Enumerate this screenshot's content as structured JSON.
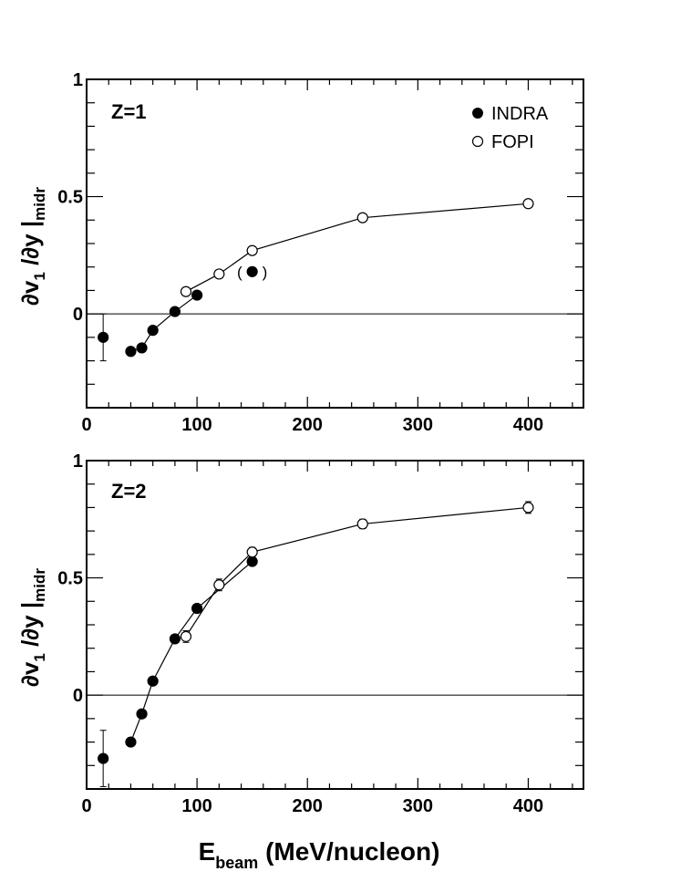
{
  "chart_data": [
    {
      "type": "line",
      "panel_label": "Z=1",
      "ylabel": {
        "main": "∂v",
        "sub1": "1",
        "mid": " /∂y  |",
        "sub2": "midr"
      },
      "xlim": [
        0,
        450
      ],
      "ylim": [
        -0.4,
        1.0
      ],
      "xticks": [
        0,
        100,
        200,
        300,
        400
      ],
      "yticks": [
        0,
        0.5,
        1
      ],
      "ytick_labels": [
        "0",
        "0.5",
        "1"
      ],
      "zero_line": true,
      "legend": {
        "placement": "top-right",
        "entries": [
          {
            "marker": "filled-circle",
            "label": "INDRA"
          },
          {
            "marker": "open-circle",
            "label": "FOPI"
          }
        ]
      },
      "series": [
        {
          "name": "INDRA",
          "marker": "filled",
          "connected": true,
          "x": [
            40,
            50,
            60,
            80,
            100
          ],
          "y": [
            -0.16,
            -0.145,
            -0.07,
            0.01,
            0.08
          ]
        },
        {
          "name": "FOPI",
          "marker": "open",
          "connected": true,
          "x": [
            90,
            120,
            150,
            250,
            400
          ],
          "y": [
            0.095,
            0.17,
            0.27,
            0.41,
            0.47
          ]
        },
        {
          "marker": "filled",
          "connected": false,
          "x": [
            15
          ],
          "y": [
            -0.1
          ],
          "yerr": [
            0.1
          ]
        },
        {
          "marker": "filled",
          "connected": false,
          "parenthesized": true,
          "x": [
            150
          ],
          "y": [
            0.18
          ]
        }
      ]
    },
    {
      "type": "line",
      "panel_label": "Z=2",
      "ylabel": {
        "main": "∂v",
        "sub1": "1",
        "mid": " /∂y  |",
        "sub2": "midr"
      },
      "xlim": [
        0,
        450
      ],
      "ylim": [
        -0.4,
        1.0
      ],
      "xticks": [
        0,
        100,
        200,
        300,
        400
      ],
      "yticks": [
        0,
        0.5,
        1
      ],
      "ytick_labels": [
        "0",
        "0.5",
        "1"
      ],
      "zero_line": true,
      "series": [
        {
          "name": "INDRA",
          "marker": "filled",
          "connected": true,
          "x": [
            40,
            50,
            60,
            80,
            100,
            150
          ],
          "y": [
            -0.2,
            -0.08,
            0.06,
            0.24,
            0.37,
            0.57
          ]
        },
        {
          "name": "FOPI",
          "marker": "open",
          "connected": true,
          "x": [
            90,
            120,
            150,
            250,
            400
          ],
          "y": [
            0.25,
            0.47,
            0.61,
            0.73,
            0.8
          ],
          "yerr": [
            0.025,
            0.025,
            0.02,
            0.02,
            0.025
          ]
        },
        {
          "marker": "filled",
          "connected": false,
          "x": [
            15
          ],
          "y": [
            -0.27
          ],
          "yerr": [
            0.12
          ]
        }
      ]
    }
  ],
  "xlabel": {
    "main": "E",
    "sub": "beam",
    "rest": " (MeV/nucleon)"
  }
}
